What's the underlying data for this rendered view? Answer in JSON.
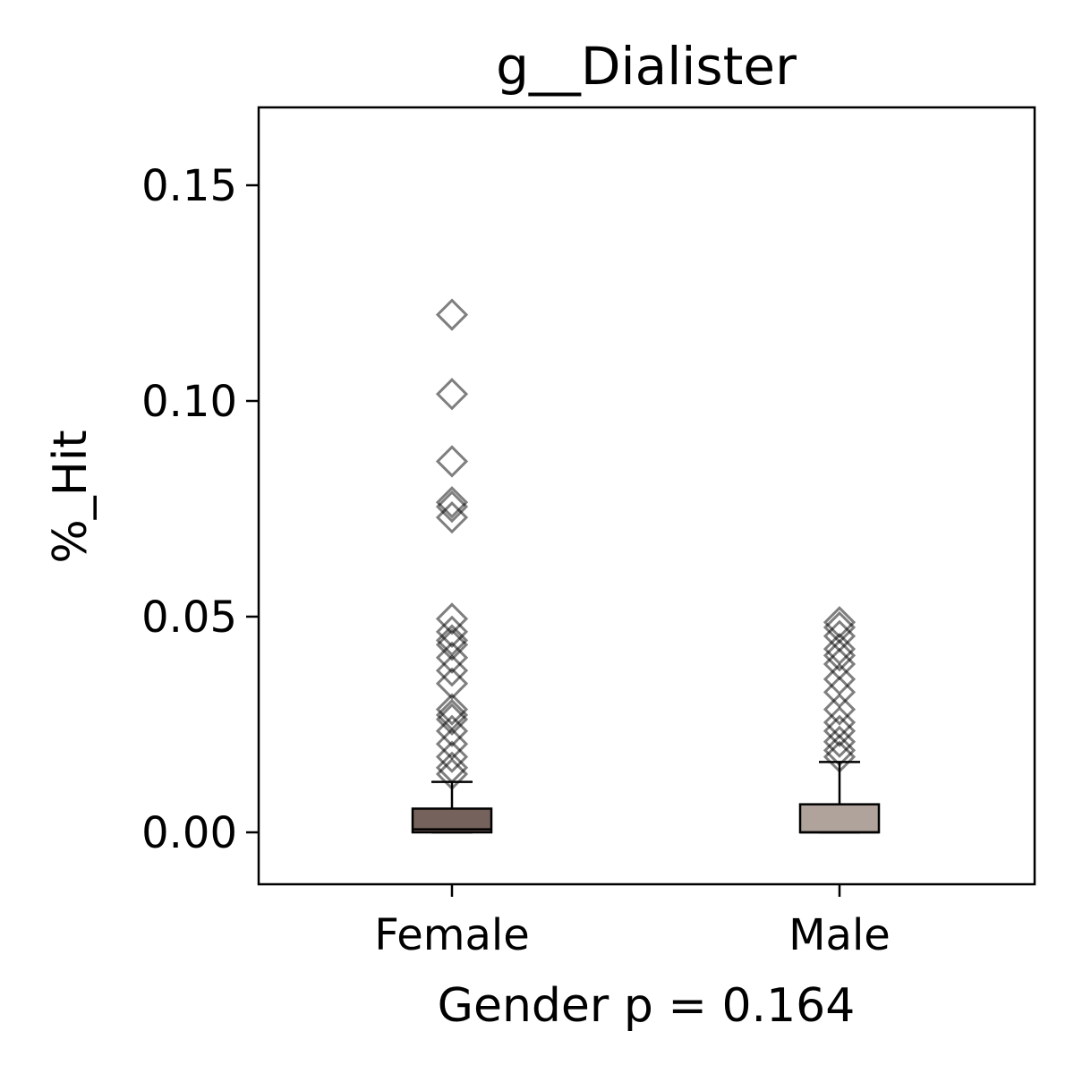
{
  "chart_data": {
    "type": "box",
    "title": "g__Dialister",
    "xlabel": "Gender p = 0.164",
    "ylabel": "%_Hit",
    "ylim": [
      -0.012,
      0.168
    ],
    "yticks": [
      "0.00",
      "0.05",
      "0.10",
      "0.15"
    ],
    "ytick_values": [
      0.0,
      0.05,
      0.1,
      0.15
    ],
    "categories": [
      "Female",
      "Male"
    ],
    "grid": false,
    "legend": "none",
    "boxes": [
      {
        "category": "Female",
        "color": "#75625c",
        "min": 0.0,
        "q1": 0.0,
        "median": 0.0007,
        "q3": 0.0055,
        "max": 0.0117,
        "outliers": [
          0.12,
          0.1016,
          0.086,
          0.0765,
          0.0755,
          0.073,
          0.0495,
          0.0465,
          0.0445,
          0.0435,
          0.0405,
          0.0375,
          0.0345,
          0.0285,
          0.0272,
          0.0262,
          0.0235,
          0.0205,
          0.0175,
          0.015,
          0.0135
        ]
      },
      {
        "category": "Male",
        "color": "#b0a39c",
        "min": 0.0,
        "q1": 0.0,
        "median": 0.0,
        "q3": 0.0065,
        "max": 0.0163,
        "outliers": [
          0.0487,
          0.0475,
          0.0455,
          0.0425,
          0.041,
          0.039,
          0.0355,
          0.0325,
          0.0285,
          0.0255,
          0.0235,
          0.021,
          0.019,
          0.0175
        ]
      }
    ]
  }
}
